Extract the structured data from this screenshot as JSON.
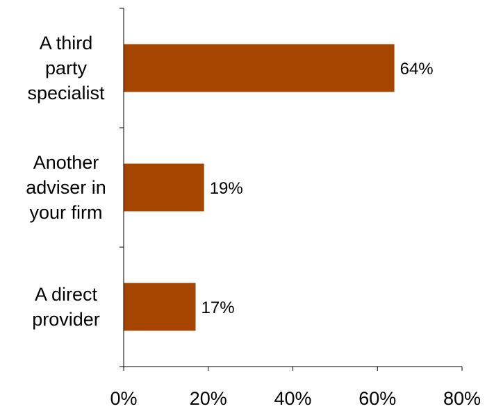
{
  "chart_data": {
    "type": "bar",
    "orientation": "horizontal",
    "title": "",
    "xlabel": "",
    "ylabel": "",
    "categories": [
      [
        "A third",
        "party",
        "specialist"
      ],
      [
        "Another",
        "adviser in",
        "your firm"
      ],
      [
        "A direct",
        "provider"
      ]
    ],
    "values": [
      64,
      19,
      17
    ],
    "data_labels": [
      "64%",
      "19%",
      "17%"
    ],
    "xlim": [
      0,
      80
    ],
    "x_ticks": [
      0,
      20,
      40,
      60,
      80
    ],
    "x_tick_labels": [
      "0%",
      "20%",
      "40%",
      "60%",
      "80%"
    ],
    "grid": false,
    "legend": "none",
    "colors": {
      "bar": "#A64500",
      "axis": "#000000"
    }
  }
}
